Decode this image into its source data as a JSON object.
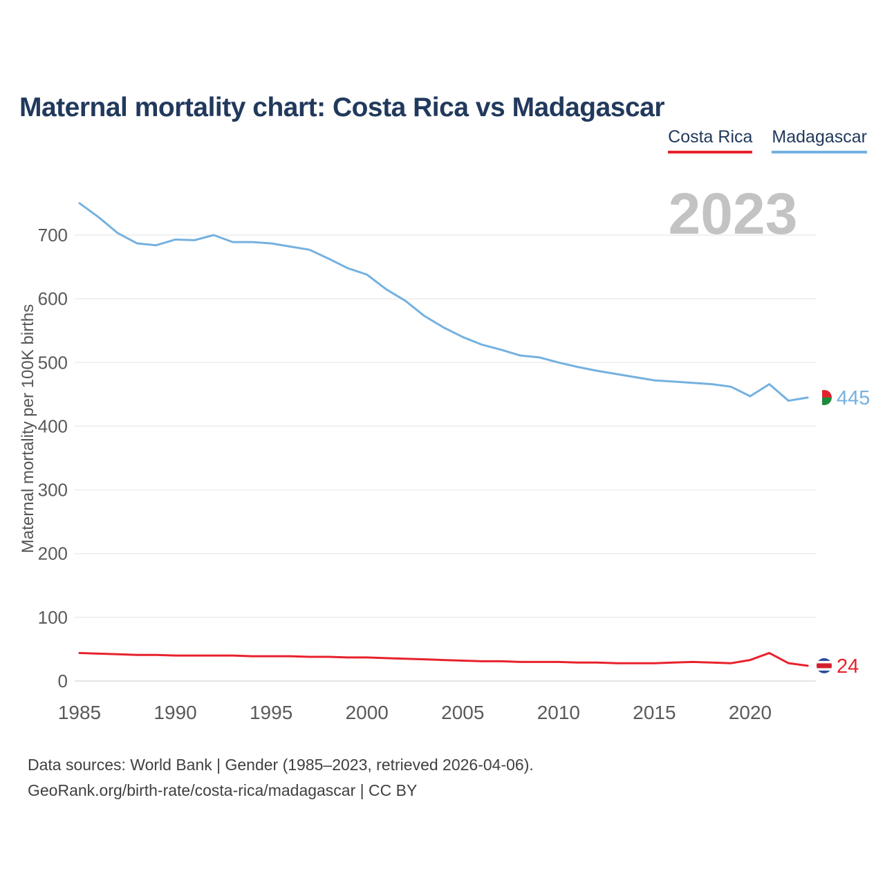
{
  "title": "Maternal mortality chart: Costa Rica vs Madagascar",
  "watermark": "2023",
  "legend": {
    "items": [
      {
        "label": "Costa Rica",
        "color": "#e8212c"
      },
      {
        "label": "Madagascar",
        "color": "#74b1e0"
      }
    ]
  },
  "footer": {
    "line1": "Data sources: World Bank | Gender (1985–2023, retrieved 2026-04-06).",
    "line2": "GeoRank.org/birth-rate/costa-rica/madagascar | CC BY"
  },
  "chart_data": {
    "type": "line",
    "title": "Maternal mortality chart: Costa Rica vs Madagascar",
    "xlabel": "",
    "ylabel": "Maternal mortality per 100K births",
    "ylim": [
      0,
      760
    ],
    "grid": true,
    "legend_position": "top-right",
    "x_ticks": [
      1985,
      1990,
      1995,
      2000,
      2005,
      2010,
      2015,
      2020
    ],
    "y_ticks": [
      0,
      100,
      200,
      300,
      400,
      500,
      600,
      700
    ],
    "x": [
      1985,
      1986,
      1987,
      1988,
      1989,
      1990,
      1991,
      1992,
      1993,
      1994,
      1995,
      1996,
      1997,
      1998,
      1999,
      2000,
      2001,
      2002,
      2003,
      2004,
      2005,
      2006,
      2007,
      2008,
      2009,
      2010,
      2011,
      2012,
      2013,
      2014,
      2015,
      2016,
      2017,
      2018,
      2019,
      2020,
      2021,
      2022,
      2023
    ],
    "series": [
      {
        "name": "Costa Rica",
        "color": "#e8212c",
        "flag": "costa-rica-flag",
        "end_label": "24",
        "values": [
          44,
          43,
          42,
          41,
          41,
          40,
          40,
          40,
          40,
          39,
          39,
          39,
          38,
          38,
          37,
          37,
          36,
          35,
          34,
          33,
          32,
          31,
          31,
          30,
          30,
          30,
          29,
          29,
          28,
          28,
          28,
          29,
          30,
          29,
          28,
          33,
          44,
          28,
          24
        ]
      },
      {
        "name": "Madagascar",
        "color": "#74b1e0",
        "flag": "madagascar-flag",
        "end_label": "445",
        "values": [
          750,
          728,
          703,
          687,
          684,
          693,
          692,
          700,
          689,
          689,
          687,
          682,
          677,
          663,
          648,
          638,
          615,
          597,
          573,
          555,
          540,
          528,
          520,
          511,
          508,
          500,
          493,
          487,
          482,
          477,
          472,
          470,
          468,
          466,
          462,
          447,
          466,
          440,
          445
        ]
      }
    ]
  }
}
